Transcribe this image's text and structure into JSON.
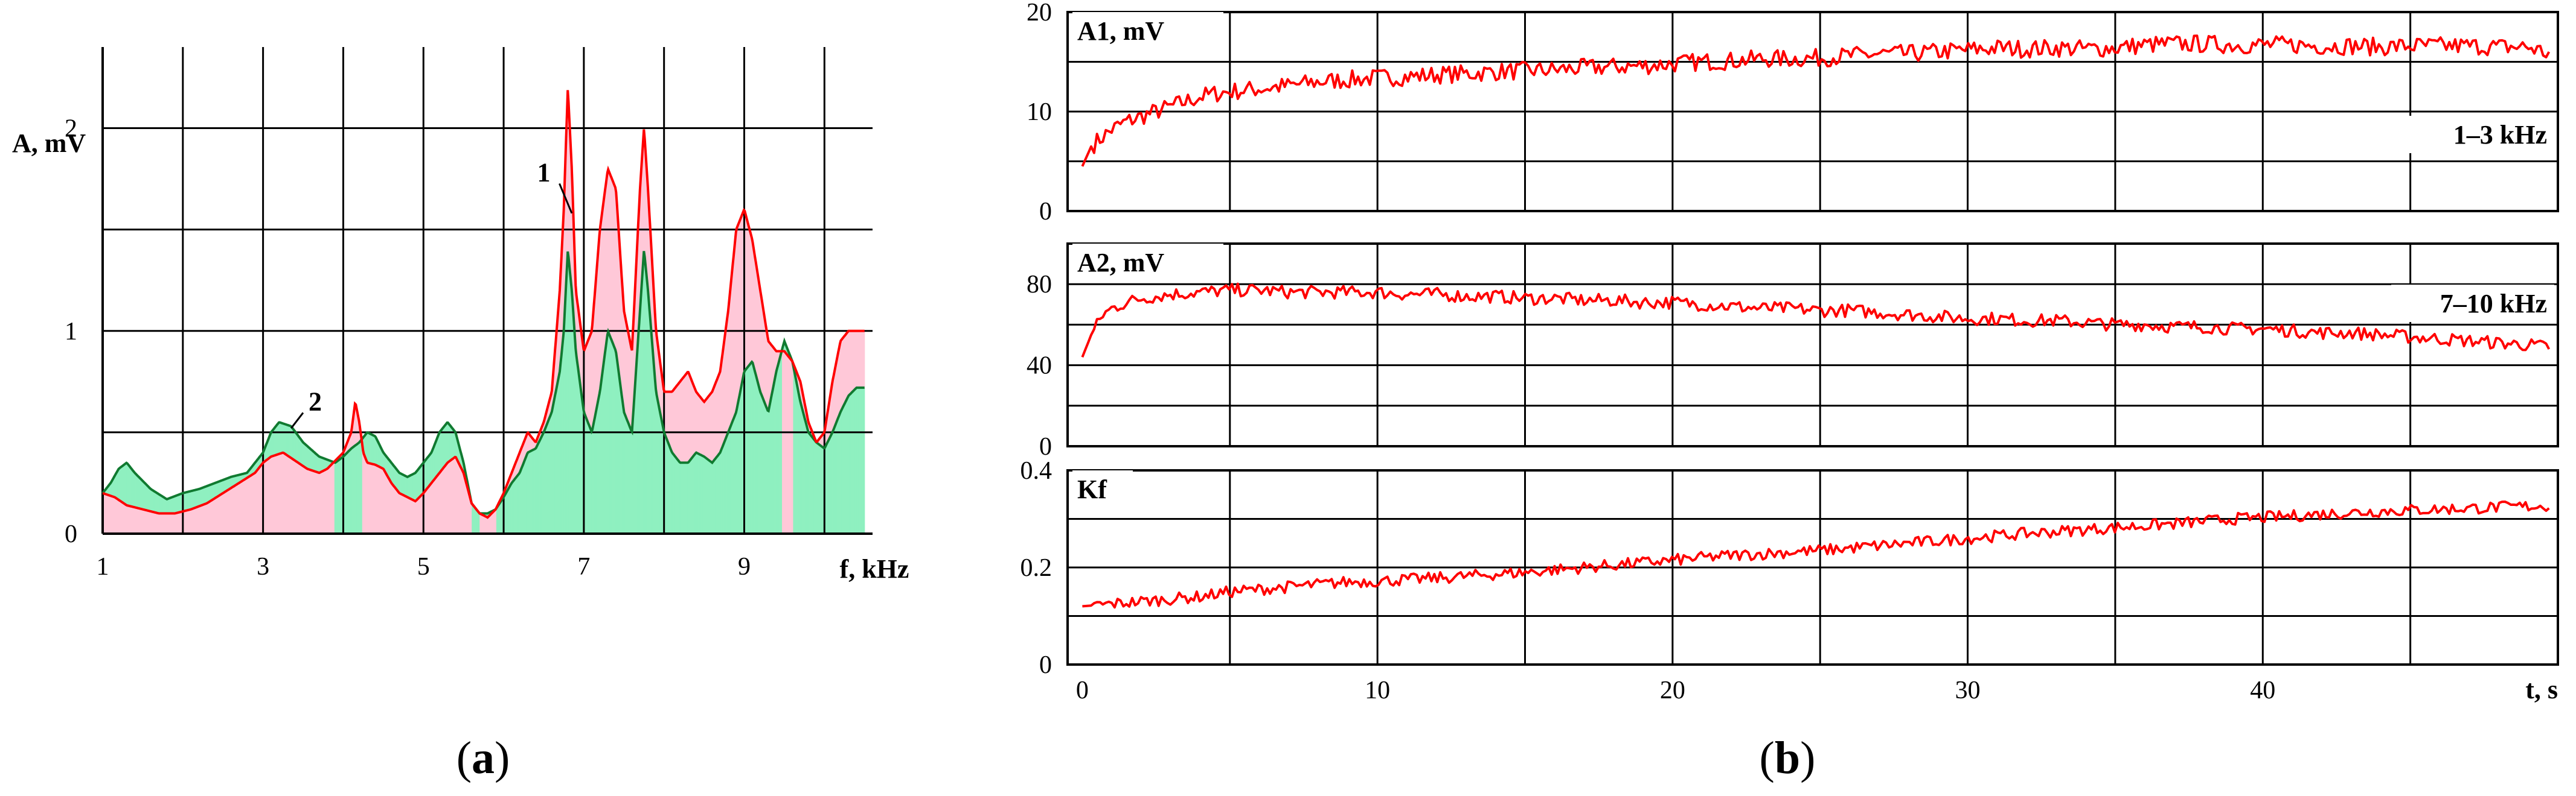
{
  "colors": {
    "red": "#ff0000",
    "pink_fill": "#ffc8d8",
    "green_fill": "#8ff0c0",
    "green_line": "#107a30"
  },
  "panel_a": {
    "caption_open": "(",
    "caption_letter": "a",
    "caption_close": ")"
  },
  "panel_b": {
    "caption_open": "(",
    "caption_letter": "b",
    "caption_close": ")"
  },
  "chart_data": [
    {
      "id": "spectrum",
      "type": "area",
      "title": "",
      "xlabel": "f, kHz",
      "ylabel": "A, mV",
      "xlim": [
        1,
        10.6
      ],
      "ylim": [
        0,
        2.4
      ],
      "xticks": [
        1,
        3,
        5,
        7,
        9
      ],
      "xtick_labels": [
        "1",
        "3",
        "5",
        "7",
        "9"
      ],
      "yticks": [
        0,
        1,
        2
      ],
      "ytick_labels": [
        "0",
        "1",
        "2"
      ],
      "x_gridlines": [
        2,
        3,
        4,
        5,
        6,
        7,
        8,
        9,
        10
      ],
      "y_gridlines": [
        0.5,
        1,
        1.5,
        2
      ],
      "grid": true,
      "annotations": [
        {
          "text": "1",
          "series": "1",
          "x": 6.5,
          "y": 1.78,
          "pointer_to": [
            6.85,
            1.58
          ]
        },
        {
          "text": "2",
          "series": "2",
          "x": 3.65,
          "y": 0.65,
          "pointer_to": [
            3.35,
            0.52
          ]
        }
      ],
      "series": [
        {
          "name": "1",
          "x": [
            1.0,
            1.15,
            1.3,
            1.5,
            1.7,
            1.9,
            2.1,
            2.3,
            2.5,
            2.7,
            2.9,
            3.0,
            3.1,
            3.25,
            3.4,
            3.55,
            3.7,
            3.8,
            3.9,
            4.0,
            4.1,
            4.15,
            4.2,
            4.25,
            4.3,
            4.4,
            4.5,
            4.6,
            4.7,
            4.8,
            4.9,
            5.0,
            5.1,
            5.2,
            5.3,
            5.4,
            5.5,
            5.6,
            5.7,
            5.8,
            5.9,
            6.0,
            6.1,
            6.2,
            6.3,
            6.4,
            6.5,
            6.6,
            6.7,
            6.75,
            6.8,
            6.85,
            6.9,
            7.0,
            7.1,
            7.2,
            7.3,
            7.4,
            7.5,
            7.6,
            7.7,
            7.75,
            7.8,
            7.9,
            8.0,
            8.1,
            8.2,
            8.3,
            8.4,
            8.5,
            8.6,
            8.7,
            8.8,
            8.9,
            9.0,
            9.1,
            9.2,
            9.3,
            9.4,
            9.5,
            9.6,
            9.7,
            9.8,
            9.9,
            10.0,
            10.1,
            10.2,
            10.3,
            10.4,
            10.5
          ],
          "values": [
            0.2,
            0.18,
            0.14,
            0.12,
            0.1,
            0.1,
            0.12,
            0.15,
            0.2,
            0.25,
            0.3,
            0.35,
            0.38,
            0.4,
            0.36,
            0.32,
            0.3,
            0.32,
            0.36,
            0.4,
            0.5,
            0.65,
            0.55,
            0.4,
            0.35,
            0.34,
            0.32,
            0.25,
            0.2,
            0.18,
            0.16,
            0.2,
            0.25,
            0.3,
            0.35,
            0.38,
            0.3,
            0.15,
            0.1,
            0.08,
            0.12,
            0.2,
            0.3,
            0.4,
            0.5,
            0.45,
            0.55,
            0.7,
            1.2,
            1.6,
            2.2,
            1.8,
            1.2,
            0.9,
            1.0,
            1.5,
            1.8,
            1.7,
            1.1,
            0.9,
            1.7,
            2.0,
            1.7,
            1.0,
            0.7,
            0.7,
            0.75,
            0.8,
            0.7,
            0.65,
            0.7,
            0.8,
            1.1,
            1.5,
            1.6,
            1.45,
            1.2,
            0.95,
            0.9,
            0.9,
            0.85,
            0.75,
            0.55,
            0.45,
            0.5,
            0.75,
            0.95,
            1.0,
            1.0,
            1.0
          ]
        },
        {
          "name": "2",
          "x": [
            1.0,
            1.1,
            1.2,
            1.3,
            1.4,
            1.6,
            1.8,
            2.0,
            2.2,
            2.4,
            2.6,
            2.8,
            3.0,
            3.1,
            3.2,
            3.35,
            3.5,
            3.7,
            3.9,
            4.0,
            4.1,
            4.2,
            4.3,
            4.4,
            4.5,
            4.6,
            4.7,
            4.8,
            4.9,
            5.0,
            5.1,
            5.2,
            5.3,
            5.4,
            5.5,
            5.6,
            5.7,
            5.8,
            5.9,
            6.0,
            6.1,
            6.2,
            6.3,
            6.4,
            6.5,
            6.6,
            6.7,
            6.75,
            6.8,
            6.85,
            6.9,
            7.0,
            7.1,
            7.2,
            7.3,
            7.4,
            7.5,
            7.6,
            7.7,
            7.75,
            7.8,
            7.9,
            8.0,
            8.1,
            8.2,
            8.3,
            8.4,
            8.5,
            8.6,
            8.7,
            8.8,
            8.9,
            9.0,
            9.1,
            9.2,
            9.3,
            9.4,
            9.5,
            9.6,
            9.7,
            9.8,
            9.9,
            10.0,
            10.1,
            10.2,
            10.3,
            10.4,
            10.5
          ],
          "values": [
            0.2,
            0.25,
            0.32,
            0.35,
            0.3,
            0.22,
            0.17,
            0.2,
            0.22,
            0.25,
            0.28,
            0.3,
            0.4,
            0.5,
            0.55,
            0.53,
            0.45,
            0.38,
            0.35,
            0.38,
            0.42,
            0.45,
            0.5,
            0.48,
            0.4,
            0.35,
            0.3,
            0.28,
            0.3,
            0.35,
            0.4,
            0.5,
            0.55,
            0.5,
            0.35,
            0.15,
            0.1,
            0.1,
            0.12,
            0.18,
            0.25,
            0.3,
            0.4,
            0.42,
            0.5,
            0.6,
            0.8,
            1.0,
            1.4,
            1.2,
            0.9,
            0.6,
            0.5,
            0.7,
            1.0,
            0.9,
            0.6,
            0.5,
            1.1,
            1.4,
            1.2,
            0.7,
            0.5,
            0.4,
            0.35,
            0.35,
            0.4,
            0.38,
            0.35,
            0.4,
            0.5,
            0.6,
            0.8,
            0.85,
            0.7,
            0.6,
            0.8,
            0.95,
            0.85,
            0.65,
            0.5,
            0.45,
            0.42,
            0.5,
            0.6,
            0.68,
            0.72,
            0.72
          ]
        }
      ]
    },
    {
      "id": "A1",
      "type": "line",
      "title": "",
      "label": "A1, mV",
      "band": "1–3 kHz",
      "xlabel": "",
      "ylabel": "A1, mV",
      "xlim": [
        -0.5,
        50
      ],
      "ylim": [
        0,
        20
      ],
      "yticks": [
        0,
        10,
        20
      ],
      "ytick_labels": [
        "0",
        "10",
        "20"
      ],
      "y_gridlines": [
        5,
        10,
        15
      ],
      "x_gridlines": [
        5,
        10,
        15,
        20,
        25,
        30,
        35,
        40,
        45
      ],
      "grid": true,
      "series": [
        {
          "name": "A1",
          "x": [
            0,
            0.3,
            0.7,
            1,
            1.5,
            2,
            2.5,
            3,
            3.5,
            4,
            4.5,
            5,
            6,
            7,
            8,
            9,
            10,
            11,
            12,
            13,
            14,
            15,
            16,
            17,
            18,
            19,
            20,
            21,
            22,
            23,
            24,
            25,
            26,
            27,
            28,
            29,
            30,
            31,
            32,
            33,
            34,
            35,
            36,
            37,
            38,
            39,
            40,
            41,
            42,
            43,
            44,
            45,
            46,
            47,
            48,
            49,
            49.7
          ],
          "values": [
            4.5,
            6.5,
            7.5,
            8.2,
            9.0,
            9.5,
            10.0,
            10.5,
            11.0,
            11.5,
            11.8,
            12.0,
            12.3,
            12.6,
            13.0,
            13.2,
            13.4,
            13.5,
            13.7,
            13.8,
            14.0,
            14.1,
            14.2,
            14.4,
            14.5,
            14.6,
            14.8,
            15.0,
            15.1,
            15.3,
            15.3,
            15.4,
            15.6,
            15.8,
            15.8,
            16.0,
            16.2,
            16.4,
            16.3,
            16.4,
            16.3,
            16.4,
            16.7,
            16.8,
            16.8,
            16.7,
            16.7,
            16.7,
            16.6,
            16.6,
            16.5,
            16.6,
            16.6,
            16.6,
            16.5,
            16.5,
            15.8
          ]
        }
      ]
    },
    {
      "id": "A2",
      "type": "line",
      "title": "",
      "label": "A2, mV",
      "band": "7–10 kHz",
      "xlabel": "",
      "ylabel": "A2, mV",
      "xlim": [
        -0.5,
        50
      ],
      "ylim": [
        0,
        100
      ],
      "yticks": [
        0,
        40,
        80
      ],
      "ytick_labels": [
        "0",
        "40",
        "80"
      ],
      "y_gridlines": [
        20,
        40,
        60,
        80
      ],
      "x_gridlines": [
        5,
        10,
        15,
        20,
        25,
        30,
        35,
        40,
        45
      ],
      "grid": true,
      "series": [
        {
          "name": "A2",
          "x": [
            0,
            0.3,
            0.7,
            1,
            1.5,
            2,
            2.5,
            3,
            4,
            5,
            6,
            7,
            8,
            9,
            10,
            11,
            12,
            13,
            14,
            15,
            16,
            17,
            18,
            19,
            20,
            21,
            22,
            23,
            24,
            25,
            26,
            27,
            28,
            29,
            30,
            31,
            32,
            33,
            34,
            35,
            36,
            37,
            38,
            39,
            40,
            41,
            42,
            43,
            44,
            45,
            46,
            47,
            48,
            49,
            49.7
          ],
          "values": [
            44,
            55,
            65,
            68,
            71,
            73,
            74,
            75,
            76,
            77,
            77,
            76,
            76,
            76,
            76,
            75,
            75,
            74,
            74,
            73,
            73,
            72,
            72,
            71,
            71,
            70,
            69,
            68,
            68,
            67,
            67,
            66,
            65,
            64,
            63,
            63,
            62,
            62,
            61,
            60,
            60,
            59,
            59,
            58,
            58,
            57,
            56,
            56,
            55,
            54,
            53,
            52,
            51,
            50,
            49
          ]
        }
      ]
    },
    {
      "id": "Kf",
      "type": "line",
      "title": "",
      "label": "Kf",
      "xlabel": "t, s",
      "ylabel": "Kf",
      "xlim": [
        -0.5,
        50
      ],
      "ylim": [
        0,
        0.4
      ],
      "xticks": [
        0,
        10,
        20,
        30,
        40
      ],
      "xtick_labels": [
        "0",
        "10",
        "20",
        "30",
        "40"
      ],
      "yticks": [
        0,
        0.2,
        0.4
      ],
      "ytick_labels": [
        "0",
        "0.2",
        "0.4"
      ],
      "y_gridlines": [
        0.1,
        0.2,
        0.3
      ],
      "x_gridlines": [
        5,
        10,
        15,
        20,
        25,
        30,
        35,
        40,
        45
      ],
      "grid": true,
      "series": [
        {
          "name": "Kf",
          "x": [
            0,
            1,
            2,
            3,
            4,
            5,
            6,
            7,
            8,
            9,
            10,
            11,
            12,
            13,
            14,
            15,
            16,
            17,
            18,
            19,
            20,
            21,
            22,
            23,
            24,
            25,
            26,
            27,
            28,
            29,
            30,
            31,
            32,
            33,
            34,
            35,
            36,
            37,
            38,
            39,
            40,
            41,
            42,
            43,
            44,
            45,
            46,
            47,
            48,
            49,
            49.7
          ],
          "values": [
            0.12,
            0.125,
            0.13,
            0.135,
            0.14,
            0.15,
            0.155,
            0.16,
            0.165,
            0.17,
            0.172,
            0.175,
            0.178,
            0.182,
            0.186,
            0.19,
            0.195,
            0.2,
            0.205,
            0.21,
            0.215,
            0.22,
            0.225,
            0.228,
            0.232,
            0.235,
            0.24,
            0.245,
            0.25,
            0.255,
            0.26,
            0.265,
            0.27,
            0.274,
            0.278,
            0.282,
            0.286,
            0.29,
            0.295,
            0.3,
            0.303,
            0.306,
            0.31,
            0.313,
            0.316,
            0.318,
            0.32,
            0.322,
            0.324,
            0.326,
            0.327
          ]
        }
      ]
    }
  ]
}
